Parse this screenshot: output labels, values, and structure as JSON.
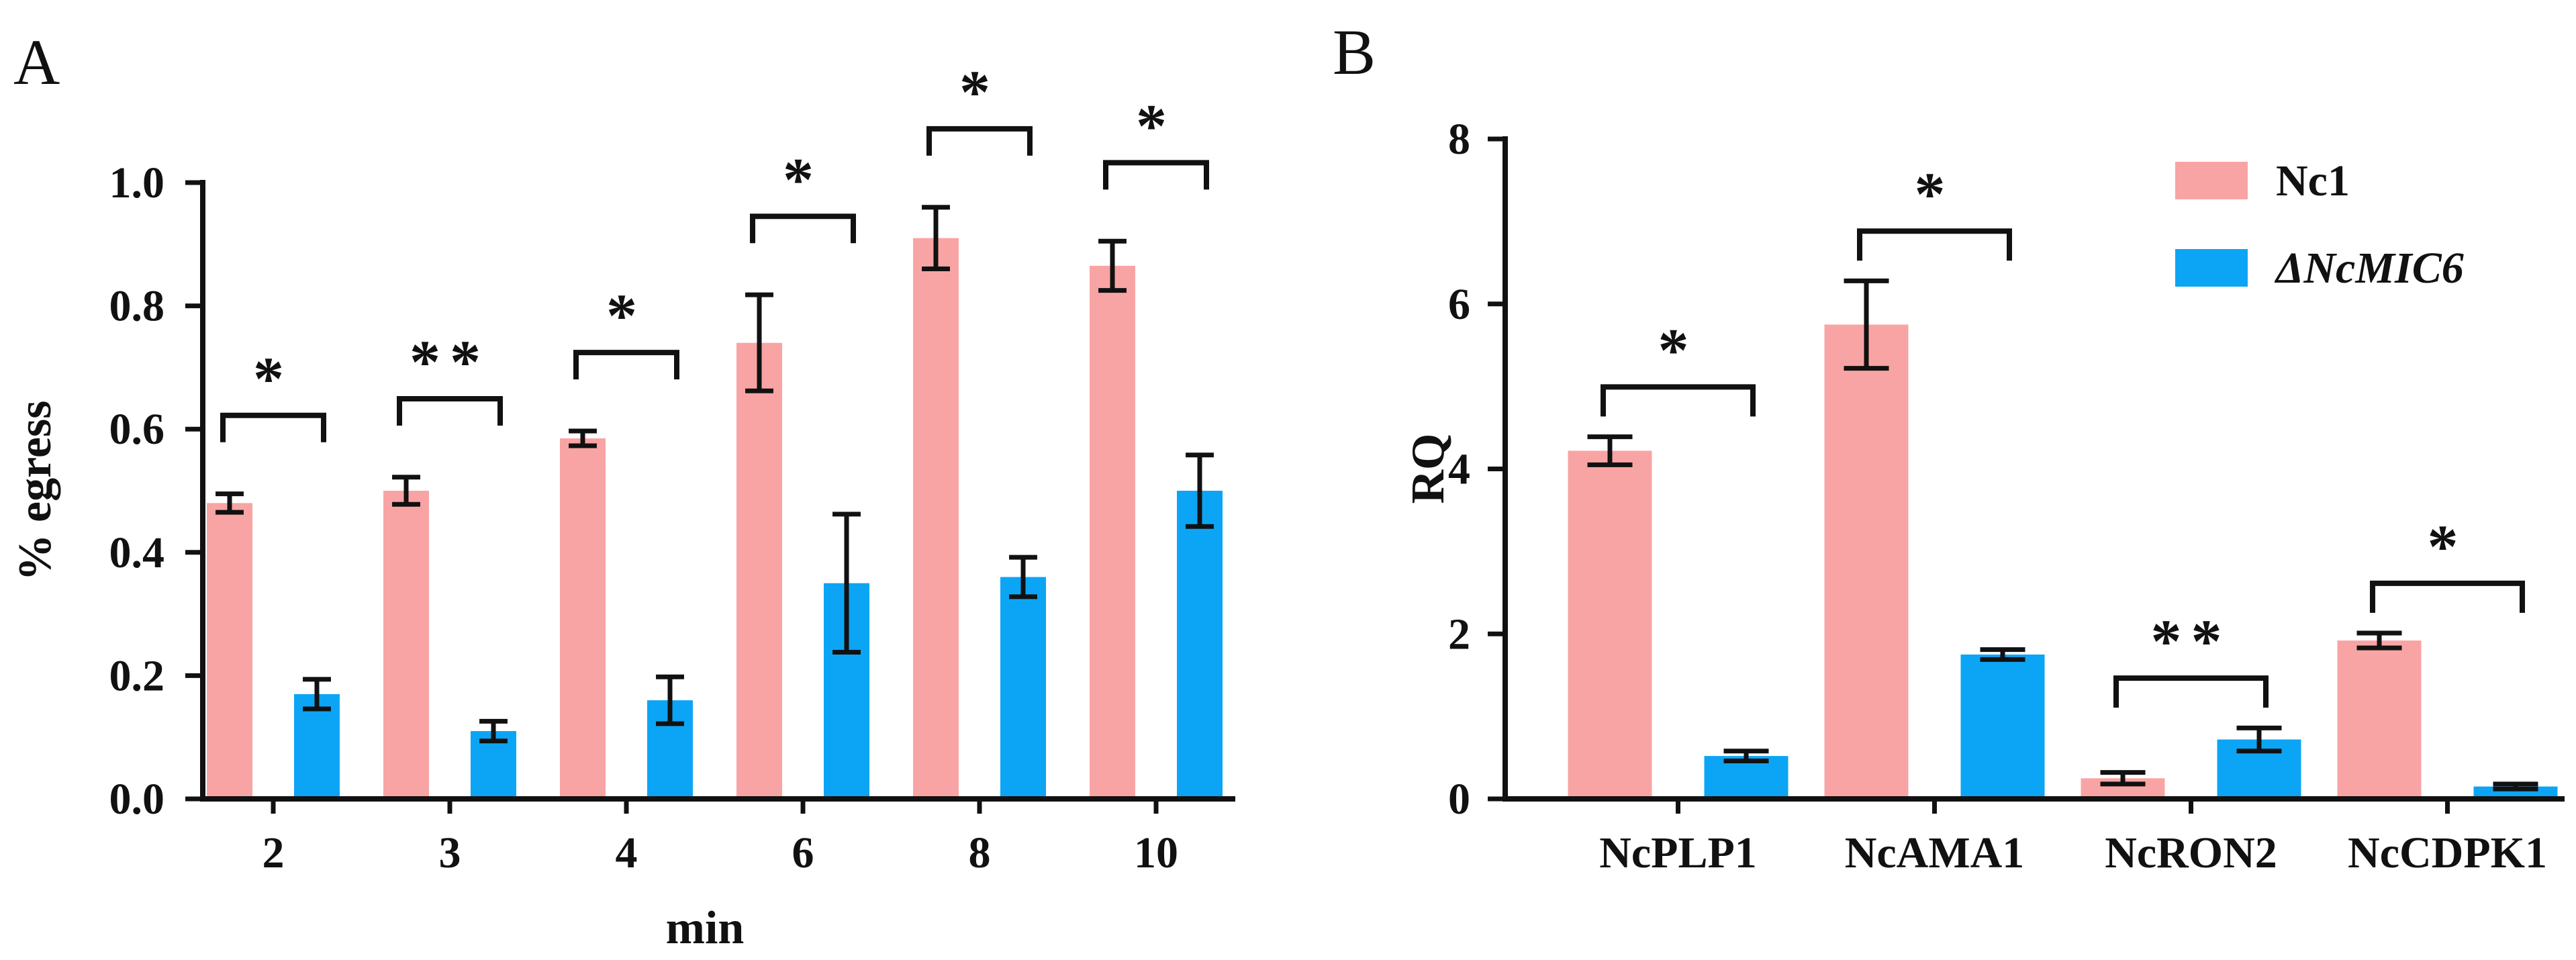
{
  "colors": {
    "nc1": "#F9A4A4",
    "mutant": "#0CA5F5",
    "ink": "#111111"
  },
  "chart_data": [
    {
      "type": "bar",
      "panel_label": "A",
      "title": "",
      "xlabel": "min",
      "ylabel": "% egress",
      "ylim": [
        0,
        1.0
      ],
      "yticks": [
        "0.0",
        "0.2",
        "0.4",
        "0.6",
        "0.8",
        "1.0"
      ],
      "categories": [
        "2",
        "3",
        "4",
        "6",
        "8",
        "10"
      ],
      "series": [
        {
          "name": "Nc1",
          "values": [
            0.48,
            0.5,
            0.585,
            0.74,
            0.91,
            0.865
          ],
          "errors": [
            0.015,
            0.022,
            0.012,
            0.078,
            0.05,
            0.04
          ]
        },
        {
          "name": "ΔNcMIC6",
          "values": [
            0.17,
            0.11,
            0.16,
            0.35,
            0.36,
            0.5
          ],
          "errors": [
            0.024,
            0.016,
            0.038,
            0.112,
            0.032,
            0.058
          ]
        }
      ],
      "significance": [
        "*",
        "**",
        "*",
        "*",
        "*",
        "*"
      ]
    },
    {
      "type": "bar",
      "panel_label": "B",
      "title": "",
      "xlabel": "",
      "ylabel": "RQ",
      "ylim": [
        0,
        8
      ],
      "yticks": [
        "0",
        "2",
        "4",
        "6",
        "8"
      ],
      "categories": [
        "NcPLP1",
        "NcAMA1",
        "NcRON2",
        "NcCDPK1"
      ],
      "series": [
        {
          "name": "Nc1",
          "values": [
            4.22,
            5.75,
            0.25,
            1.92
          ],
          "errors": [
            0.17,
            0.53,
            0.07,
            0.09
          ]
        },
        {
          "name": "ΔNcMIC6",
          "values": [
            0.52,
            1.75,
            0.72,
            0.15
          ],
          "errors": [
            0.06,
            0.06,
            0.14,
            0.03
          ]
        }
      ],
      "significance": [
        "*",
        "*",
        "**",
        "*"
      ],
      "legend": {
        "position": "top-right",
        "entries": [
          "Nc1",
          "ΔNcMIC6"
        ]
      }
    }
  ]
}
